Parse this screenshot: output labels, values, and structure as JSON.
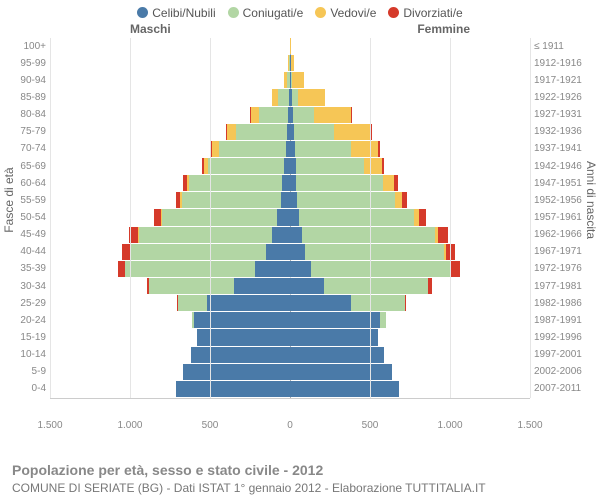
{
  "chart": {
    "type": "population-pyramid",
    "legend": {
      "items": [
        {
          "label": "Celibi/Nubili",
          "color": "#4a7aa8"
        },
        {
          "label": "Coniugati/e",
          "color": "#b2d6a4"
        },
        {
          "label": "Vedovi/e",
          "color": "#f6c656"
        },
        {
          "label": "Divorziati/e",
          "color": "#d53a2a"
        }
      ]
    },
    "genderLabels": {
      "male": "Maschi",
      "female": "Femmine"
    },
    "axisLeftTitle": "Fasce di età",
    "axisRightTitle": "Anni di nascita",
    "xMax": 1500,
    "xStep": 500,
    "xTicks": [
      "1.500",
      "1.000",
      "500",
      "0",
      "500",
      "1.000",
      "1.500"
    ],
    "colors": {
      "background": "#ffffff",
      "grid": "#e5e5e5",
      "centerline": "#aaaaaa",
      "axisText": "#888888"
    },
    "ageGroups": [
      "0-4",
      "5-9",
      "10-14",
      "15-19",
      "20-24",
      "25-29",
      "30-34",
      "35-39",
      "40-44",
      "45-49",
      "50-54",
      "55-59",
      "60-64",
      "65-69",
      "70-74",
      "75-79",
      "80-84",
      "85-89",
      "90-94",
      "95-99",
      "100+"
    ],
    "birthYears": [
      "2007-2011",
      "2002-2006",
      "1997-2001",
      "1992-1996",
      "1987-1991",
      "1982-1986",
      "1977-1981",
      "1972-1976",
      "1967-1971",
      "1962-1966",
      "1957-1961",
      "1952-1956",
      "1947-1951",
      "1942-1946",
      "1937-1941",
      "1932-1936",
      "1927-1931",
      "1922-1926",
      "1917-1921",
      "1912-1916",
      "≤ 1911"
    ],
    "series": {
      "male": [
        {
          "single": 710,
          "married": 0,
          "widowed": 0,
          "divorced": 0
        },
        {
          "single": 670,
          "married": 0,
          "widowed": 0,
          "divorced": 0
        },
        {
          "single": 620,
          "married": 0,
          "widowed": 0,
          "divorced": 0
        },
        {
          "single": 580,
          "married": 0,
          "widowed": 0,
          "divorced": 0
        },
        {
          "single": 600,
          "married": 10,
          "widowed": 0,
          "divorced": 0
        },
        {
          "single": 520,
          "married": 180,
          "widowed": 0,
          "divorced": 5
        },
        {
          "single": 350,
          "married": 530,
          "widowed": 0,
          "divorced": 15
        },
        {
          "single": 220,
          "married": 810,
          "widowed": 0,
          "divorced": 45
        },
        {
          "single": 150,
          "married": 850,
          "widowed": 3,
          "divorced": 45
        },
        {
          "single": 115,
          "married": 830,
          "widowed": 5,
          "divorced": 55
        },
        {
          "single": 80,
          "married": 720,
          "widowed": 7,
          "divorced": 45
        },
        {
          "single": 55,
          "married": 620,
          "widowed": 10,
          "divorced": 30
        },
        {
          "single": 50,
          "married": 580,
          "widowed": 15,
          "divorced": 22
        },
        {
          "single": 35,
          "married": 480,
          "widowed": 25,
          "divorced": 12
        },
        {
          "single": 25,
          "married": 420,
          "widowed": 40,
          "divorced": 8
        },
        {
          "single": 18,
          "married": 320,
          "widowed": 55,
          "divorced": 5
        },
        {
          "single": 12,
          "married": 180,
          "widowed": 55,
          "divorced": 2
        },
        {
          "single": 6,
          "married": 70,
          "widowed": 35,
          "divorced": 0
        },
        {
          "single": 2,
          "married": 15,
          "widowed": 18,
          "divorced": 0
        },
        {
          "single": 1,
          "married": 3,
          "widowed": 6,
          "divorced": 0
        },
        {
          "single": 0,
          "married": 0,
          "widowed": 1,
          "divorced": 0
        }
      ],
      "female": [
        {
          "single": 680,
          "married": 0,
          "widowed": 0,
          "divorced": 0
        },
        {
          "single": 640,
          "married": 0,
          "widowed": 0,
          "divorced": 0
        },
        {
          "single": 590,
          "married": 0,
          "widowed": 0,
          "divorced": 0
        },
        {
          "single": 550,
          "married": 0,
          "widowed": 0,
          "divorced": 0
        },
        {
          "single": 560,
          "married": 40,
          "widowed": 0,
          "divorced": 0
        },
        {
          "single": 380,
          "married": 340,
          "widowed": 0,
          "divorced": 8
        },
        {
          "single": 210,
          "married": 650,
          "widowed": 2,
          "divorced": 25
        },
        {
          "single": 130,
          "married": 870,
          "widowed": 5,
          "divorced": 55
        },
        {
          "single": 95,
          "married": 870,
          "widowed": 10,
          "divorced": 55
        },
        {
          "single": 75,
          "married": 830,
          "widowed": 20,
          "divorced": 60
        },
        {
          "single": 55,
          "married": 720,
          "widowed": 30,
          "divorced": 45
        },
        {
          "single": 45,
          "married": 610,
          "widowed": 45,
          "divorced": 30
        },
        {
          "single": 40,
          "married": 540,
          "widowed": 70,
          "divorced": 25
        },
        {
          "single": 35,
          "married": 430,
          "widowed": 110,
          "divorced": 15
        },
        {
          "single": 30,
          "married": 350,
          "widowed": 170,
          "divorced": 10
        },
        {
          "single": 25,
          "married": 250,
          "widowed": 230,
          "divorced": 6
        },
        {
          "single": 20,
          "married": 130,
          "widowed": 230,
          "divorced": 3
        },
        {
          "single": 12,
          "married": 40,
          "widowed": 170,
          "divorced": 0
        },
        {
          "single": 6,
          "married": 8,
          "widowed": 75,
          "divorced": 0
        },
        {
          "single": 2,
          "married": 1,
          "widowed": 20,
          "divorced": 0
        },
        {
          "single": 0,
          "married": 0,
          "widowed": 4,
          "divorced": 0
        }
      ]
    }
  },
  "footer": {
    "line1": "Popolazione per età, sesso e stato civile - 2012",
    "line2": "COMUNE DI SERIATE (BG) - Dati ISTAT 1° gennaio 2012 - Elaborazione TUTTITALIA.IT"
  }
}
